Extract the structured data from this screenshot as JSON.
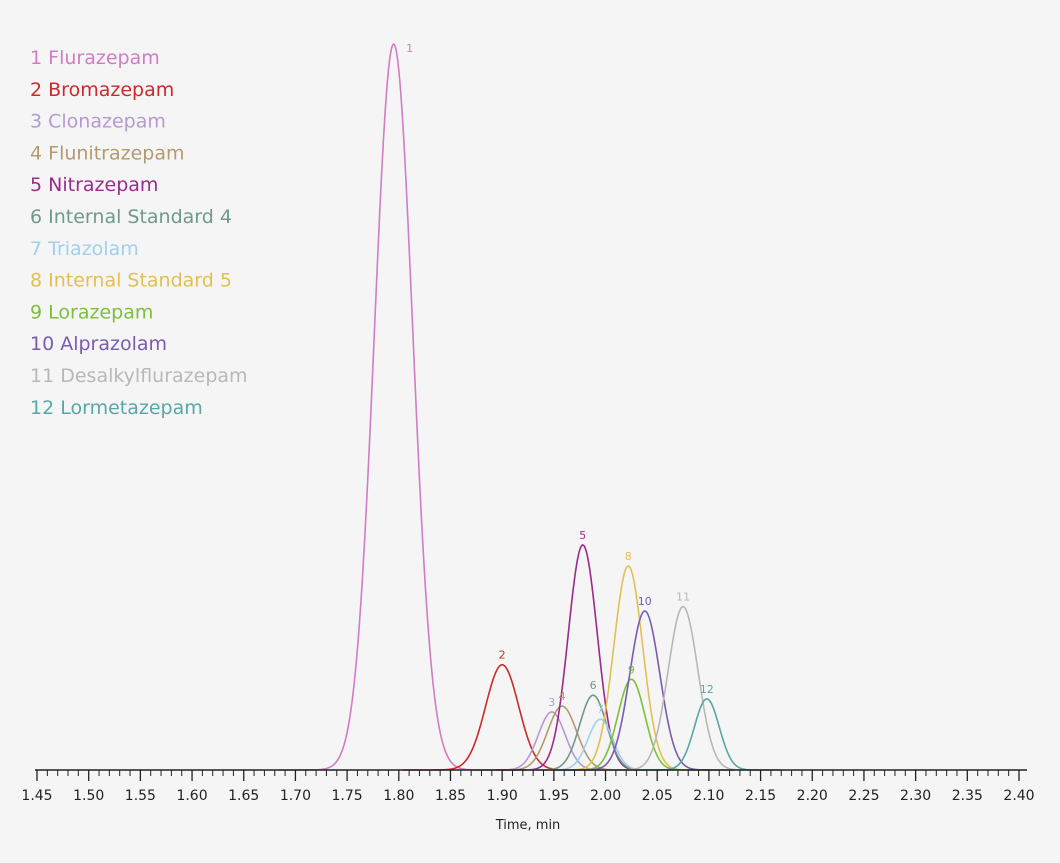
{
  "chart_data": {
    "type": "line",
    "xlabel": "Time, min",
    "ylabel": "",
    "xlim": [
      1.45,
      2.4
    ],
    "ylim": [
      0,
      1
    ],
    "x_ticks": [
      "1.45",
      "1.50",
      "1.55",
      "1.60",
      "1.65",
      "1.70",
      "1.75",
      "1.80",
      "1.85",
      "1.90",
      "1.95",
      "2.00",
      "2.05",
      "2.10",
      "2.15",
      "2.20",
      "2.25",
      "2.30",
      "2.35",
      "2.40"
    ],
    "grid": false,
    "legend_position": "top-left",
    "series": [
      {
        "name": "Flurazepam",
        "number": "1",
        "color": "#d17cc4",
        "peak_time": 1.795,
        "height": 1.0,
        "sigma": 0.0185
      },
      {
        "name": "Bromazepam",
        "number": "2",
        "color": "#cc2a2a",
        "peak_time": 1.9,
        "height": 0.145,
        "sigma": 0.016
      },
      {
        "name": "Clonazepam",
        "number": "3",
        "color": "#b59ad2",
        "peak_time": 1.948,
        "height": 0.08,
        "sigma": 0.013
      },
      {
        "name": "Flunitrazepam",
        "number": "4",
        "color": "#b39a70",
        "peak_time": 1.958,
        "height": 0.088,
        "sigma": 0.014
      },
      {
        "name": "Nitrazepam",
        "number": "5",
        "color": "#9b2a8e",
        "peak_time": 1.978,
        "height": 0.31,
        "sigma": 0.014
      },
      {
        "name": "Internal Standard 4",
        "number": "6",
        "color": "#6f9a8a",
        "peak_time": 1.988,
        "height": 0.103,
        "sigma": 0.013
      },
      {
        "name": "Triazolam",
        "number": "7",
        "color": "#9fd0ee",
        "peak_time": 1.995,
        "height": 0.07,
        "sigma": 0.012
      },
      {
        "name": "Internal Standard 5",
        "number": "8",
        "color": "#e2c050",
        "peak_time": 2.022,
        "height": 0.281,
        "sigma": 0.014
      },
      {
        "name": "Lorazepam",
        "number": "9",
        "color": "#7ebf3a",
        "peak_time": 2.025,
        "height": 0.125,
        "sigma": 0.013
      },
      {
        "name": "Alprazolam",
        "number": "10",
        "color": "#7a5bb0",
        "peak_time": 2.038,
        "height": 0.219,
        "sigma": 0.0145
      },
      {
        "name": "Desalkylflurazepam",
        "number": "11",
        "color": "#b8b8b8",
        "peak_time": 2.075,
        "height": 0.225,
        "sigma": 0.0145
      },
      {
        "name": "Lormetazepam",
        "number": "12",
        "color": "#5aa6a6",
        "peak_time": 2.098,
        "height": 0.098,
        "sigma": 0.012
      }
    ]
  }
}
